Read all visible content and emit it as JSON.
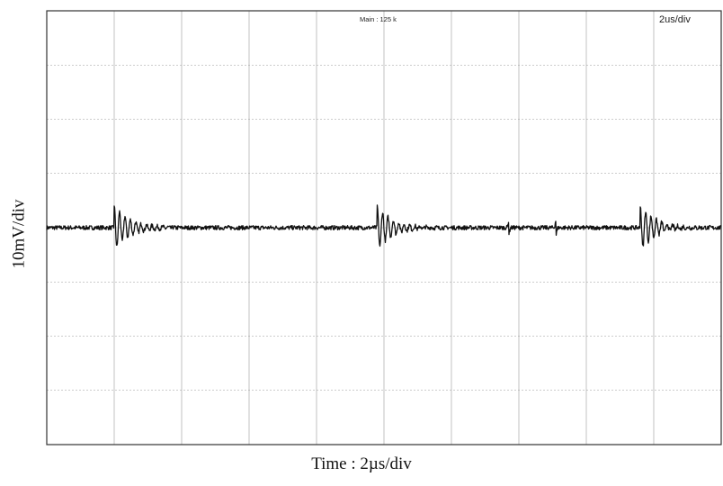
{
  "chart_data": {
    "type": "line",
    "title": "",
    "xlabel": "Time : 2µs/div",
    "ylabel": "10mV/div",
    "top_annotations": {
      "acquisition": "Main : 125 k",
      "timebase": "2us/div"
    },
    "divisions": {
      "x": 10,
      "y": 8
    },
    "xlim": [
      0,
      20
    ],
    "ylim": [
      -40,
      40
    ],
    "x_unit": "µs",
    "y_unit": "mV",
    "grid": true,
    "baseline_mV": 0,
    "noise_mV": 0.4,
    "ringing_events": [
      {
        "t_us": 2.0,
        "peak_mV": 4.2,
        "damping_us": 0.45,
        "period_us": 0.16
      },
      {
        "t_us": 9.8,
        "peak_mV": 4.0,
        "damping_us": 0.45,
        "period_us": 0.16
      },
      {
        "t_us": 17.6,
        "peak_mV": 4.2,
        "damping_us": 0.45,
        "period_us": 0.16
      }
    ],
    "small_spikes": [
      {
        "t_us": 13.7,
        "peak_mV": 1.2
      },
      {
        "t_us": 15.1,
        "peak_mV": 1.5
      }
    ],
    "trace_color": "#111111",
    "grid_color": "#9a9a9a",
    "frame_color": "#333333"
  }
}
